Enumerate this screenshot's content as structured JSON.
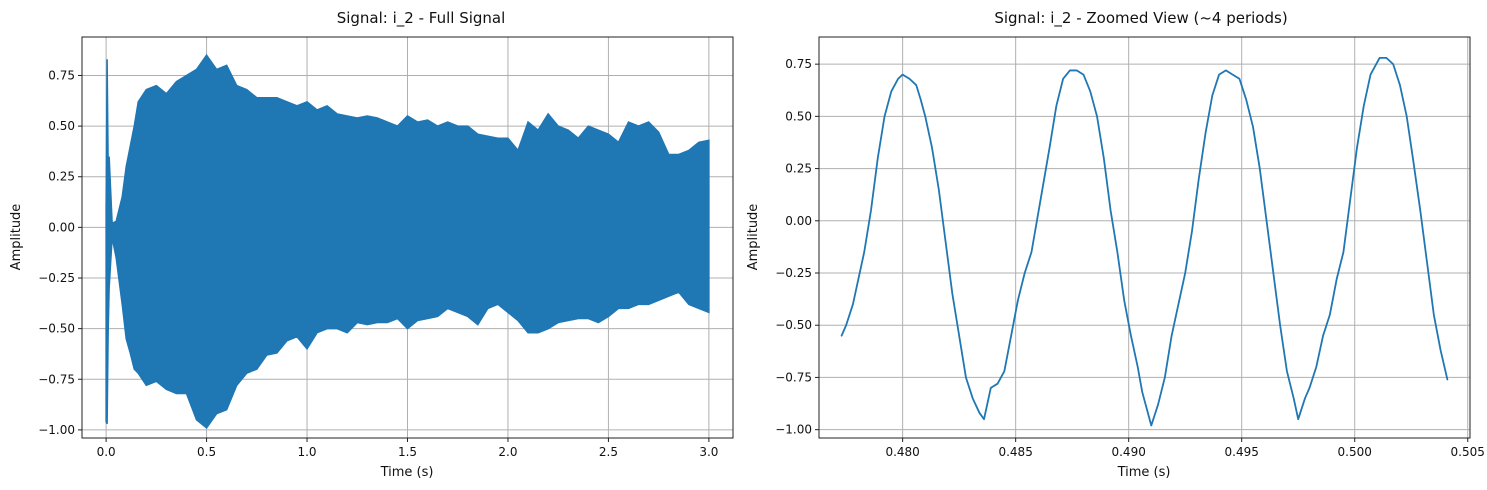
{
  "chart_data": [
    {
      "type": "area",
      "title": "Signal: i_2 - Full Signal",
      "xlabel": "Time (s)",
      "ylabel": "Amplitude",
      "xlim": [
        -0.12,
        3.12
      ],
      "ylim": [
        -1.04,
        0.94
      ],
      "xticks": [
        0.0,
        0.5,
        1.0,
        1.5,
        2.0,
        2.5,
        3.0
      ],
      "xtick_labels": [
        "0.0",
        "0.5",
        "1.0",
        "1.5",
        "2.0",
        "2.5",
        "3.0"
      ],
      "yticks": [
        -1.0,
        -0.75,
        -0.5,
        -0.25,
        0.0,
        0.25,
        0.5,
        0.75
      ],
      "ytick_labels": [
        "−1.00",
        "−0.75",
        "−0.50",
        "−0.25",
        "0.00",
        "0.25",
        "0.50",
        "0.75"
      ],
      "grid": true,
      "color": "#1f77b4",
      "series": [
        {
          "x": [
            0.0,
            0.005,
            0.01,
            0.015,
            0.03,
            0.05,
            0.08,
            0.1,
            0.12,
            0.14,
            0.16,
            0.2,
            0.25,
            0.3,
            0.35,
            0.4,
            0.45,
            0.5,
            0.55,
            0.6,
            0.65,
            0.7,
            0.75,
            0.8,
            0.85,
            0.9,
            0.95,
            1.0,
            1.05,
            1.1,
            1.15,
            1.2,
            1.25,
            1.3,
            1.35,
            1.4,
            1.45,
            1.5,
            1.55,
            1.6,
            1.65,
            1.7,
            1.75,
            1.8,
            1.85,
            1.9,
            1.95,
            2.0,
            2.05,
            2.1,
            2.15,
            2.2,
            2.25,
            2.3,
            2.35,
            2.4,
            2.45,
            2.5,
            2.55,
            2.6,
            2.65,
            2.7,
            2.75,
            2.8,
            2.85,
            2.9,
            2.95,
            3.0
          ],
          "upper": [
            0.1,
            0.83,
            0.32,
            0.35,
            0.02,
            0.03,
            0.15,
            0.3,
            0.4,
            0.5,
            0.62,
            0.68,
            0.7,
            0.66,
            0.72,
            0.75,
            0.78,
            0.85,
            0.78,
            0.8,
            0.7,
            0.68,
            0.64,
            0.64,
            0.64,
            0.62,
            0.6,
            0.62,
            0.58,
            0.6,
            0.56,
            0.55,
            0.54,
            0.55,
            0.54,
            0.52,
            0.5,
            0.55,
            0.52,
            0.53,
            0.5,
            0.52,
            0.5,
            0.5,
            0.46,
            0.45,
            0.44,
            0.44,
            0.38,
            0.52,
            0.48,
            0.56,
            0.5,
            0.48,
            0.44,
            0.5,
            0.48,
            0.46,
            0.42,
            0.52,
            0.5,
            0.52,
            0.47,
            0.36,
            0.36,
            0.38,
            0.42,
            0.43
          ],
          "lower": [
            -0.96,
            -0.97,
            -0.53,
            -0.3,
            -0.05,
            -0.15,
            -0.38,
            -0.55,
            -0.62,
            -0.7,
            -0.72,
            -0.78,
            -0.76,
            -0.8,
            -0.82,
            -0.82,
            -0.95,
            -0.99,
            -0.92,
            -0.9,
            -0.78,
            -0.72,
            -0.7,
            -0.63,
            -0.62,
            -0.56,
            -0.54,
            -0.6,
            -0.52,
            -0.5,
            -0.5,
            -0.52,
            -0.47,
            -0.48,
            -0.47,
            -0.47,
            -0.45,
            -0.5,
            -0.46,
            -0.45,
            -0.44,
            -0.4,
            -0.42,
            -0.44,
            -0.48,
            -0.4,
            -0.38,
            -0.42,
            -0.46,
            -0.52,
            -0.52,
            -0.5,
            -0.47,
            -0.46,
            -0.45,
            -0.45,
            -0.47,
            -0.44,
            -0.4,
            -0.4,
            -0.38,
            -0.38,
            -0.36,
            -0.34,
            -0.32,
            -0.38,
            -0.4,
            -0.42
          ]
        }
      ]
    },
    {
      "type": "line",
      "title": "Signal: i_2 - Zoomed View (~4 periods)",
      "xlabel": "Time (s)",
      "ylabel": "Amplitude",
      "xlim": [
        0.4763,
        0.5051
      ],
      "ylim": [
        -1.04,
        0.88
      ],
      "xticks": [
        0.48,
        0.485,
        0.49,
        0.495,
        0.5,
        0.505
      ],
      "xtick_labels": [
        "0.480",
        "0.485",
        "0.490",
        "0.495",
        "0.500",
        "0.505"
      ],
      "yticks": [
        -1.0,
        -0.75,
        -0.5,
        -0.25,
        0.0,
        0.25,
        0.5,
        0.75
      ],
      "ytick_labels": [
        "−1.00",
        "−0.75",
        "−0.50",
        "−0.25",
        "0.00",
        "0.25",
        "0.50",
        "0.75"
      ],
      "grid": true,
      "color": "#1f77b4",
      "series": [
        {
          "x": [
            0.4773,
            0.4775,
            0.4778,
            0.478,
            0.4783,
            0.4786,
            0.4789,
            0.4792,
            0.4795,
            0.4798,
            0.48,
            0.4803,
            0.4806,
            0.4808,
            0.481,
            0.4813,
            0.4816,
            0.4819,
            0.4822,
            0.4825,
            0.4828,
            0.4831,
            0.4834,
            0.4836,
            0.4839,
            0.4842,
            0.4845,
            0.4848,
            0.4851,
            0.4854,
            0.4857,
            0.4861,
            0.4865,
            0.4868,
            0.4871,
            0.4874,
            0.4877,
            0.488,
            0.4883,
            0.4886,
            0.4889,
            0.4892,
            0.4895,
            0.4898,
            0.4901,
            0.4904,
            0.4906,
            0.4908,
            0.491,
            0.4913,
            0.4916,
            0.4919,
            0.4922,
            0.4925,
            0.4928,
            0.4931,
            0.4934,
            0.4937,
            0.494,
            0.4943,
            0.4946,
            0.4949,
            0.4952,
            0.4955,
            0.4958,
            0.4961,
            0.4964,
            0.4967,
            0.497,
            0.4973,
            0.4975,
            0.4978,
            0.498,
            0.4983,
            0.4986,
            0.4989,
            0.4992,
            0.4995,
            0.4998,
            0.5001,
            0.5004,
            0.5007,
            0.5011,
            0.5014,
            0.5017,
            0.502,
            0.5023,
            0.5026,
            0.5029,
            0.5032,
            0.5035,
            0.5038,
            0.5041
          ],
          "y": [
            -0.55,
            -0.5,
            -0.4,
            -0.3,
            -0.15,
            0.05,
            0.3,
            0.5,
            0.62,
            0.68,
            0.7,
            0.68,
            0.65,
            0.58,
            0.5,
            0.35,
            0.15,
            -0.1,
            -0.35,
            -0.55,
            -0.75,
            -0.85,
            -0.92,
            -0.95,
            -0.8,
            -0.78,
            -0.72,
            -0.55,
            -0.38,
            -0.25,
            -0.15,
            0.1,
            0.35,
            0.55,
            0.68,
            0.72,
            0.72,
            0.7,
            0.62,
            0.5,
            0.3,
            0.05,
            -0.15,
            -0.38,
            -0.55,
            -0.7,
            -0.82,
            -0.9,
            -0.98,
            -0.88,
            -0.75,
            -0.55,
            -0.4,
            -0.25,
            -0.05,
            0.2,
            0.42,
            0.6,
            0.7,
            0.72,
            0.7,
            0.68,
            0.58,
            0.45,
            0.25,
            0.0,
            -0.25,
            -0.5,
            -0.72,
            -0.85,
            -0.95,
            -0.85,
            -0.8,
            -0.7,
            -0.55,
            -0.45,
            -0.28,
            -0.15,
            0.1,
            0.35,
            0.55,
            0.7,
            0.78,
            0.78,
            0.75,
            0.65,
            0.5,
            0.28,
            0.05,
            -0.2,
            -0.45,
            -0.62,
            -0.76
          ]
        }
      ]
    }
  ]
}
